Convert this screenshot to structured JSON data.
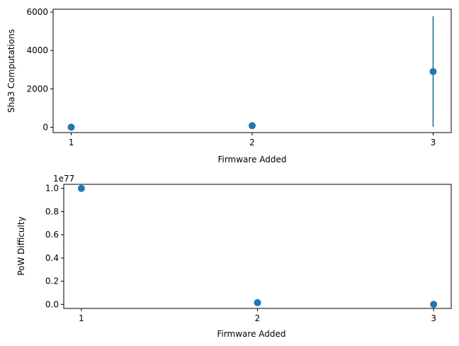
{
  "chart_data": [
    {
      "type": "scatter",
      "xlabel": "Firmware Added",
      "ylabel": "Sha3 Computations",
      "x_ticks": [
        "1",
        "2",
        "3"
      ],
      "y_ticks": [
        "0",
        "2000",
        "4000",
        "6000"
      ],
      "xlim": [
        0.9,
        3.1
      ],
      "ylim": [
        -280,
        6150
      ],
      "grid": false,
      "series": [
        {
          "color": "#1f77b4",
          "errorbar_color": "#1a6d8f",
          "points": [
            {
              "x": 1,
              "y": 0,
              "err": 0
            },
            {
              "x": 2,
              "y": 80,
              "err": 0
            },
            {
              "x": 3,
              "y": 2900,
              "err": 2880
            }
          ]
        }
      ]
    },
    {
      "type": "scatter",
      "xlabel": "Firmware Added",
      "ylabel": "PoW Difficulty",
      "offset_label": "1e77",
      "x_ticks": [
        "1",
        "2",
        "3"
      ],
      "y_ticks": [
        "0.0",
        "0.2",
        "0.4",
        "0.6",
        "0.8",
        "1.0"
      ],
      "xlim": [
        0.9,
        3.1
      ],
      "ylim": [
        -0.035,
        1.035
      ],
      "grid": false,
      "series": [
        {
          "color": "#1f77b4",
          "points": [
            {
              "x": 1,
              "y": 1.0
            },
            {
              "x": 2,
              "y": 0.015
            },
            {
              "x": 3,
              "y": 0.0
            }
          ]
        }
      ]
    }
  ]
}
